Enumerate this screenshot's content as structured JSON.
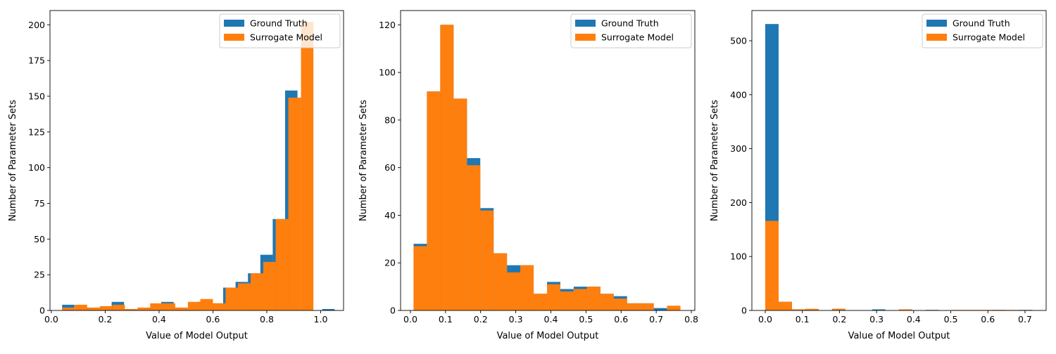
{
  "figure": {
    "background": "#ffffff"
  },
  "chart_data": [
    {
      "type": "bar",
      "subtype": "overlaid-histogram",
      "xlabel": "Value of Model Output",
      "ylabel": "Number of Parameter Sets",
      "xlim": [
        -0.005,
        1.085
      ],
      "ylim": [
        0,
        210
      ],
      "xticks": [
        0.0,
        0.2,
        0.4,
        0.6,
        0.8,
        1.0
      ],
      "xtick_labels": [
        "0.0",
        "0.2",
        "0.4",
        "0.6",
        "0.8",
        "1.0"
      ],
      "yticks": [
        0,
        25,
        50,
        75,
        100,
        125,
        150,
        175,
        200
      ],
      "ytick_labels": [
        "0",
        "25",
        "50",
        "75",
        "100",
        "125",
        "150",
        "175",
        "200"
      ],
      "legend_position": "upper-right",
      "series": [
        {
          "name": "Ground Truth",
          "color": "#1f77b4",
          "bin_edges": [
            0.04,
            0.086,
            0.132,
            0.178,
            0.224,
            0.27,
            0.316,
            0.362,
            0.408,
            0.454,
            0.5,
            0.546,
            0.592,
            0.638,
            0.684,
            0.73,
            0.776,
            0.822,
            0.868,
            0.914,
            0.96,
            1.006,
            1.052
          ],
          "values": [
            4,
            0,
            2,
            1,
            6,
            1,
            0,
            2,
            6,
            2,
            0,
            6,
            5,
            16,
            20,
            26,
            39,
            64,
            154,
            0,
            0,
            1
          ]
        },
        {
          "name": "Surrogate Model",
          "color": "#ff7f0e",
          "bin_edges": [
            0.04,
            0.087,
            0.133,
            0.18,
            0.227,
            0.273,
            0.32,
            0.367,
            0.413,
            0.46,
            0.507,
            0.553,
            0.6,
            0.647,
            0.693,
            0.74,
            0.787,
            0.833,
            0.88,
            0.927,
            0.973
          ],
          "values": [
            2,
            4,
            2,
            3,
            4,
            1,
            2,
            5,
            5,
            2,
            6,
            8,
            5,
            16,
            19,
            26,
            34,
            64,
            149,
            202
          ]
        }
      ]
    },
    {
      "type": "bar",
      "subtype": "overlaid-histogram",
      "xlabel": "Value of Model Output",
      "ylabel": "Number of Parameter Sets",
      "xlim": [
        -0.028,
        0.81
      ],
      "ylim": [
        0,
        126
      ],
      "xticks": [
        0.0,
        0.1,
        0.2,
        0.3,
        0.4,
        0.5,
        0.6,
        0.7,
        0.8
      ],
      "xtick_labels": [
        "0.0",
        "0.1",
        "0.2",
        "0.3",
        "0.4",
        "0.5",
        "0.6",
        "0.7",
        "0.8"
      ],
      "yticks": [
        0,
        20,
        40,
        60,
        80,
        100,
        120
      ],
      "ytick_labels": [
        "0",
        "20",
        "40",
        "60",
        "80",
        "100",
        "120"
      ],
      "legend_position": "upper-right",
      "series": [
        {
          "name": "Ground Truth",
          "color": "#1f77b4",
          "bin_edges": [
            0.009,
            0.047,
            0.085,
            0.123,
            0.161,
            0.199,
            0.237,
            0.275,
            0.313,
            0.351,
            0.389,
            0.427,
            0.465,
            0.503,
            0.541,
            0.579,
            0.617,
            0.655,
            0.693,
            0.731
          ],
          "values": [
            28,
            92,
            120,
            89,
            64,
            43,
            24,
            19,
            19,
            7,
            12,
            9,
            10,
            10,
            7,
            6,
            3,
            3,
            1
          ]
        },
        {
          "name": "Surrogate Model",
          "color": "#ff7f0e",
          "bin_edges": [
            0.009,
            0.047,
            0.085,
            0.123,
            0.161,
            0.199,
            0.237,
            0.275,
            0.313,
            0.351,
            0.389,
            0.427,
            0.465,
            0.503,
            0.541,
            0.579,
            0.617,
            0.655,
            0.693,
            0.731,
            0.769
          ],
          "values": [
            27,
            92,
            120,
            89,
            61,
            42,
            24,
            16,
            19,
            7,
            11,
            8,
            9,
            10,
            7,
            5,
            3,
            3,
            0,
            2
          ]
        }
      ]
    },
    {
      "type": "bar",
      "subtype": "overlaid-histogram",
      "xlabel": "Value of Model Output",
      "ylabel": "Number of Parameter Sets",
      "xlim": [
        -0.036,
        0.757
      ],
      "ylim": [
        0,
        556
      ],
      "xticks": [
        0.0,
        0.1,
        0.2,
        0.3,
        0.4,
        0.5,
        0.6,
        0.7
      ],
      "xtick_labels": [
        "0.0",
        "0.1",
        "0.2",
        "0.3",
        "0.4",
        "0.5",
        "0.6",
        "0.7"
      ],
      "yticks": [
        0,
        100,
        200,
        300,
        400,
        500
      ],
      "ytick_labels": [
        "0",
        "100",
        "200",
        "300",
        "400",
        "500"
      ],
      "legend_position": "upper-right",
      "series": [
        {
          "name": "Ground Truth",
          "color": "#1f77b4",
          "bin_edges": [
            0.0,
            0.036,
            0.072,
            0.108,
            0.144,
            0.18,
            0.216,
            0.252,
            0.288,
            0.324,
            0.36,
            0.396,
            0.432,
            0.468,
            0.504,
            0.54,
            0.576,
            0.612,
            0.648,
            0.684,
            0.72
          ],
          "values": [
            531,
            16,
            2,
            2,
            0,
            3,
            0,
            0,
            2,
            0,
            0,
            0,
            1,
            0,
            0,
            0,
            0,
            1,
            0,
            1
          ]
        },
        {
          "name": "Surrogate Model",
          "color": "#ff7f0e",
          "bin_edges": [
            0.0,
            0.036,
            0.072,
            0.108,
            0.144,
            0.18,
            0.216,
            0.252,
            0.288,
            0.324,
            0.36,
            0.396,
            0.432,
            0.468,
            0.504,
            0.54,
            0.576,
            0.612,
            0.648,
            0.684,
            0.72
          ],
          "values": [
            166,
            16,
            2,
            3,
            0,
            3,
            0,
            0,
            0,
            0,
            2,
            0,
            0,
            0,
            1,
            1,
            1,
            1,
            1,
            0
          ]
        }
      ]
    }
  ]
}
